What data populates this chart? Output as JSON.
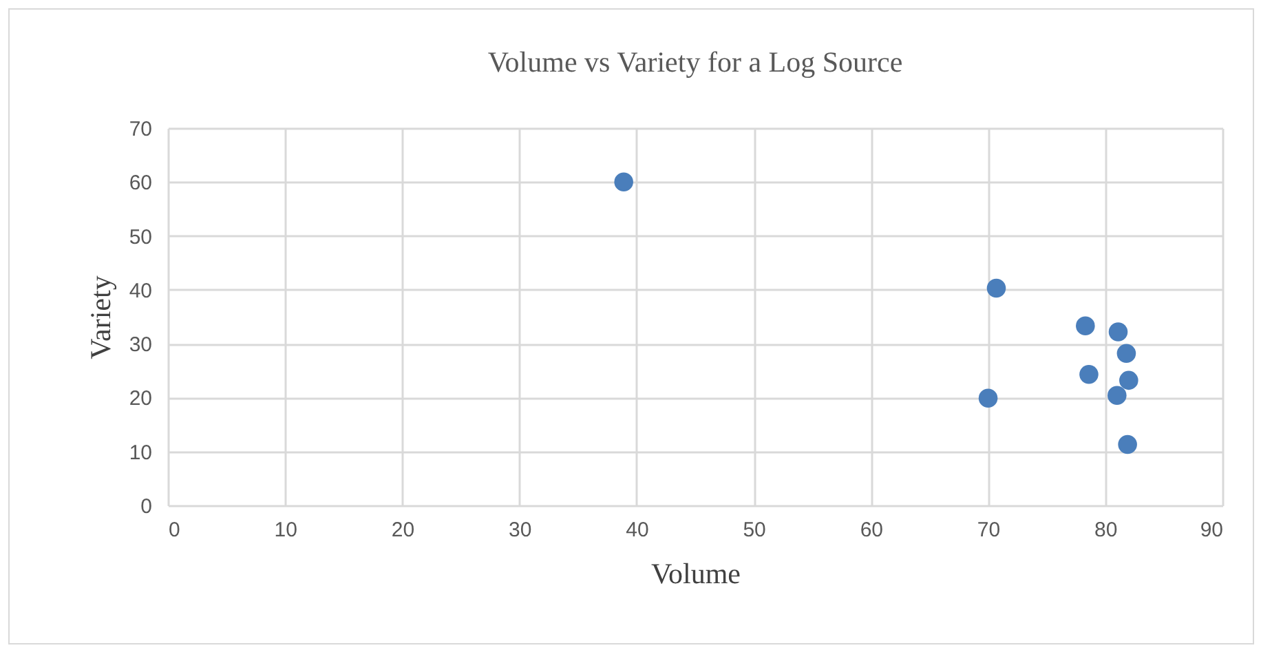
{
  "chart_data": {
    "type": "scatter",
    "title": "Volume vs Variety for a Log Source",
    "xlabel": "Volume",
    "ylabel": "Variety",
    "x": [
      38.9,
      70.7,
      78.3,
      81.1,
      81.8,
      78.6,
      82.0,
      70.0,
      81.0,
      81.9
    ],
    "series": [
      {
        "color": "#4a7ebb",
        "values": [
          60.0,
          40.3,
          33.3,
          32.2,
          28.2,
          24.3,
          23.2,
          19.9,
          20.4,
          11.3
        ]
      }
    ],
    "xlim": [
      0,
      90
    ],
    "xticks": [
      0,
      10,
      20,
      30,
      40,
      50,
      60,
      70,
      80,
      90
    ],
    "ylim": [
      0,
      70
    ],
    "yticks": [
      0,
      10,
      20,
      30,
      40,
      50,
      60,
      70
    ],
    "grid": true,
    "marker": "circle"
  }
}
